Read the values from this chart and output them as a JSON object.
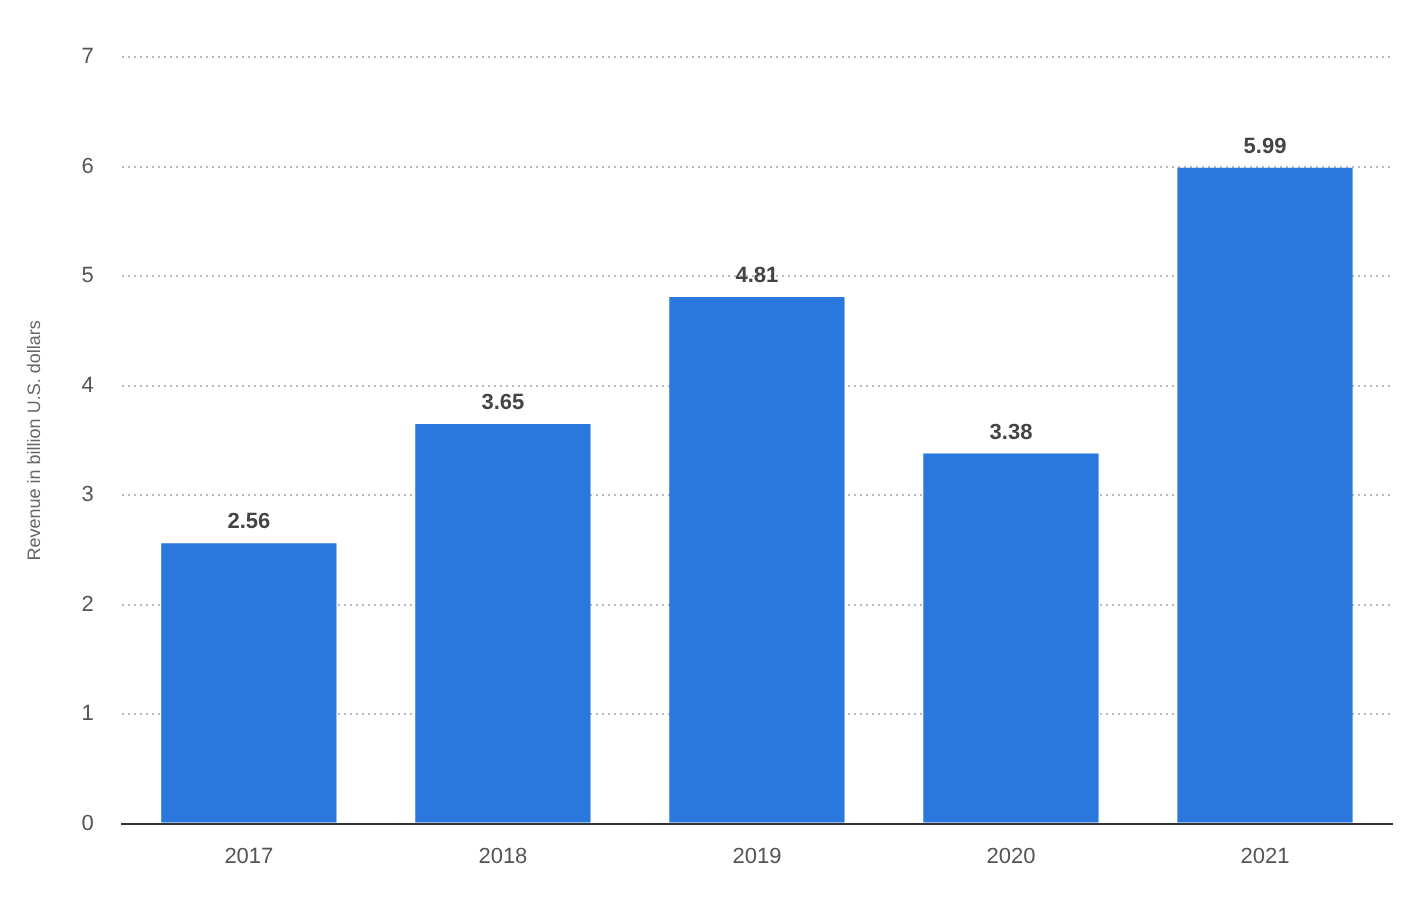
{
  "chart_data": {
    "type": "bar",
    "ylabel": "Revenue in billion U.S. dollars",
    "categories": [
      "2017",
      "2018",
      "2019",
      "2020",
      "2021"
    ],
    "values": [
      2.56,
      3.65,
      4.81,
      3.38,
      5.99
    ],
    "color": "#2a78de",
    "ylim": [
      0,
      7
    ],
    "yticks": [
      0,
      1,
      2,
      3,
      4,
      5,
      6,
      7
    ],
    "grid": "y",
    "data_labels": true
  }
}
